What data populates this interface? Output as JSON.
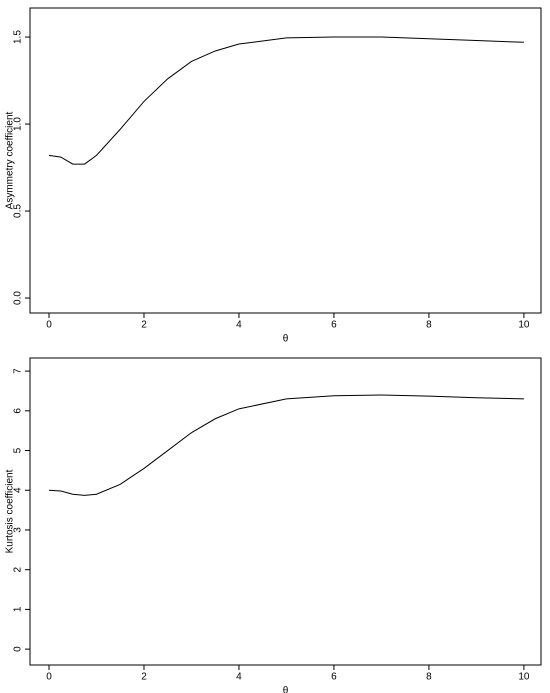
{
  "chart_data": [
    {
      "type": "line",
      "x_label": "θ",
      "y_label": "Asymmetry coefficient",
      "x": [
        0,
        0.25,
        0.5,
        0.75,
        1,
        1.5,
        2,
        2.5,
        3,
        3.5,
        4,
        5,
        6,
        7,
        8,
        9,
        10
      ],
      "values": [
        0.82,
        0.81,
        0.77,
        0.77,
        0.82,
        0.97,
        1.13,
        1.26,
        1.36,
        1.42,
        1.46,
        1.495,
        1.5,
        1.5,
        1.49,
        1.48,
        1.47
      ],
      "color": "#000000",
      "xlim": [
        -0.4,
        10.36
      ],
      "xticks": [
        0,
        2,
        4,
        6,
        8,
        10
      ],
      "ylim": [
        -0.086,
        1.667
      ],
      "yticks": [
        {
          "value": 0,
          "label": "0.0"
        },
        {
          "value": 0.5,
          "label": "0.5"
        },
        {
          "value": 1,
          "label": "1.0"
        },
        {
          "value": 1.5,
          "label": "1.5"
        }
      ]
    },
    {
      "type": "line",
      "x_label": "θ",
      "y_label": "Kurtosis coefficient",
      "x": [
        0,
        0.25,
        0.5,
        0.75,
        1,
        1.5,
        2,
        2.5,
        3,
        3.5,
        4,
        5,
        6,
        7,
        8,
        9,
        10
      ],
      "values": [
        4.0,
        3.98,
        3.9,
        3.87,
        3.9,
        4.15,
        4.55,
        5.0,
        5.45,
        5.8,
        6.05,
        6.3,
        6.38,
        6.4,
        6.37,
        6.33,
        6.3
      ],
      "color": "#000000",
      "xlim": [
        -0.4,
        10.36
      ],
      "xticks": [
        0,
        2,
        4,
        6,
        8,
        10
      ],
      "ylim": [
        -0.4,
        7.33
      ],
      "yticks": [
        0,
        1,
        2,
        3,
        4,
        5,
        6,
        7
      ]
    }
  ]
}
